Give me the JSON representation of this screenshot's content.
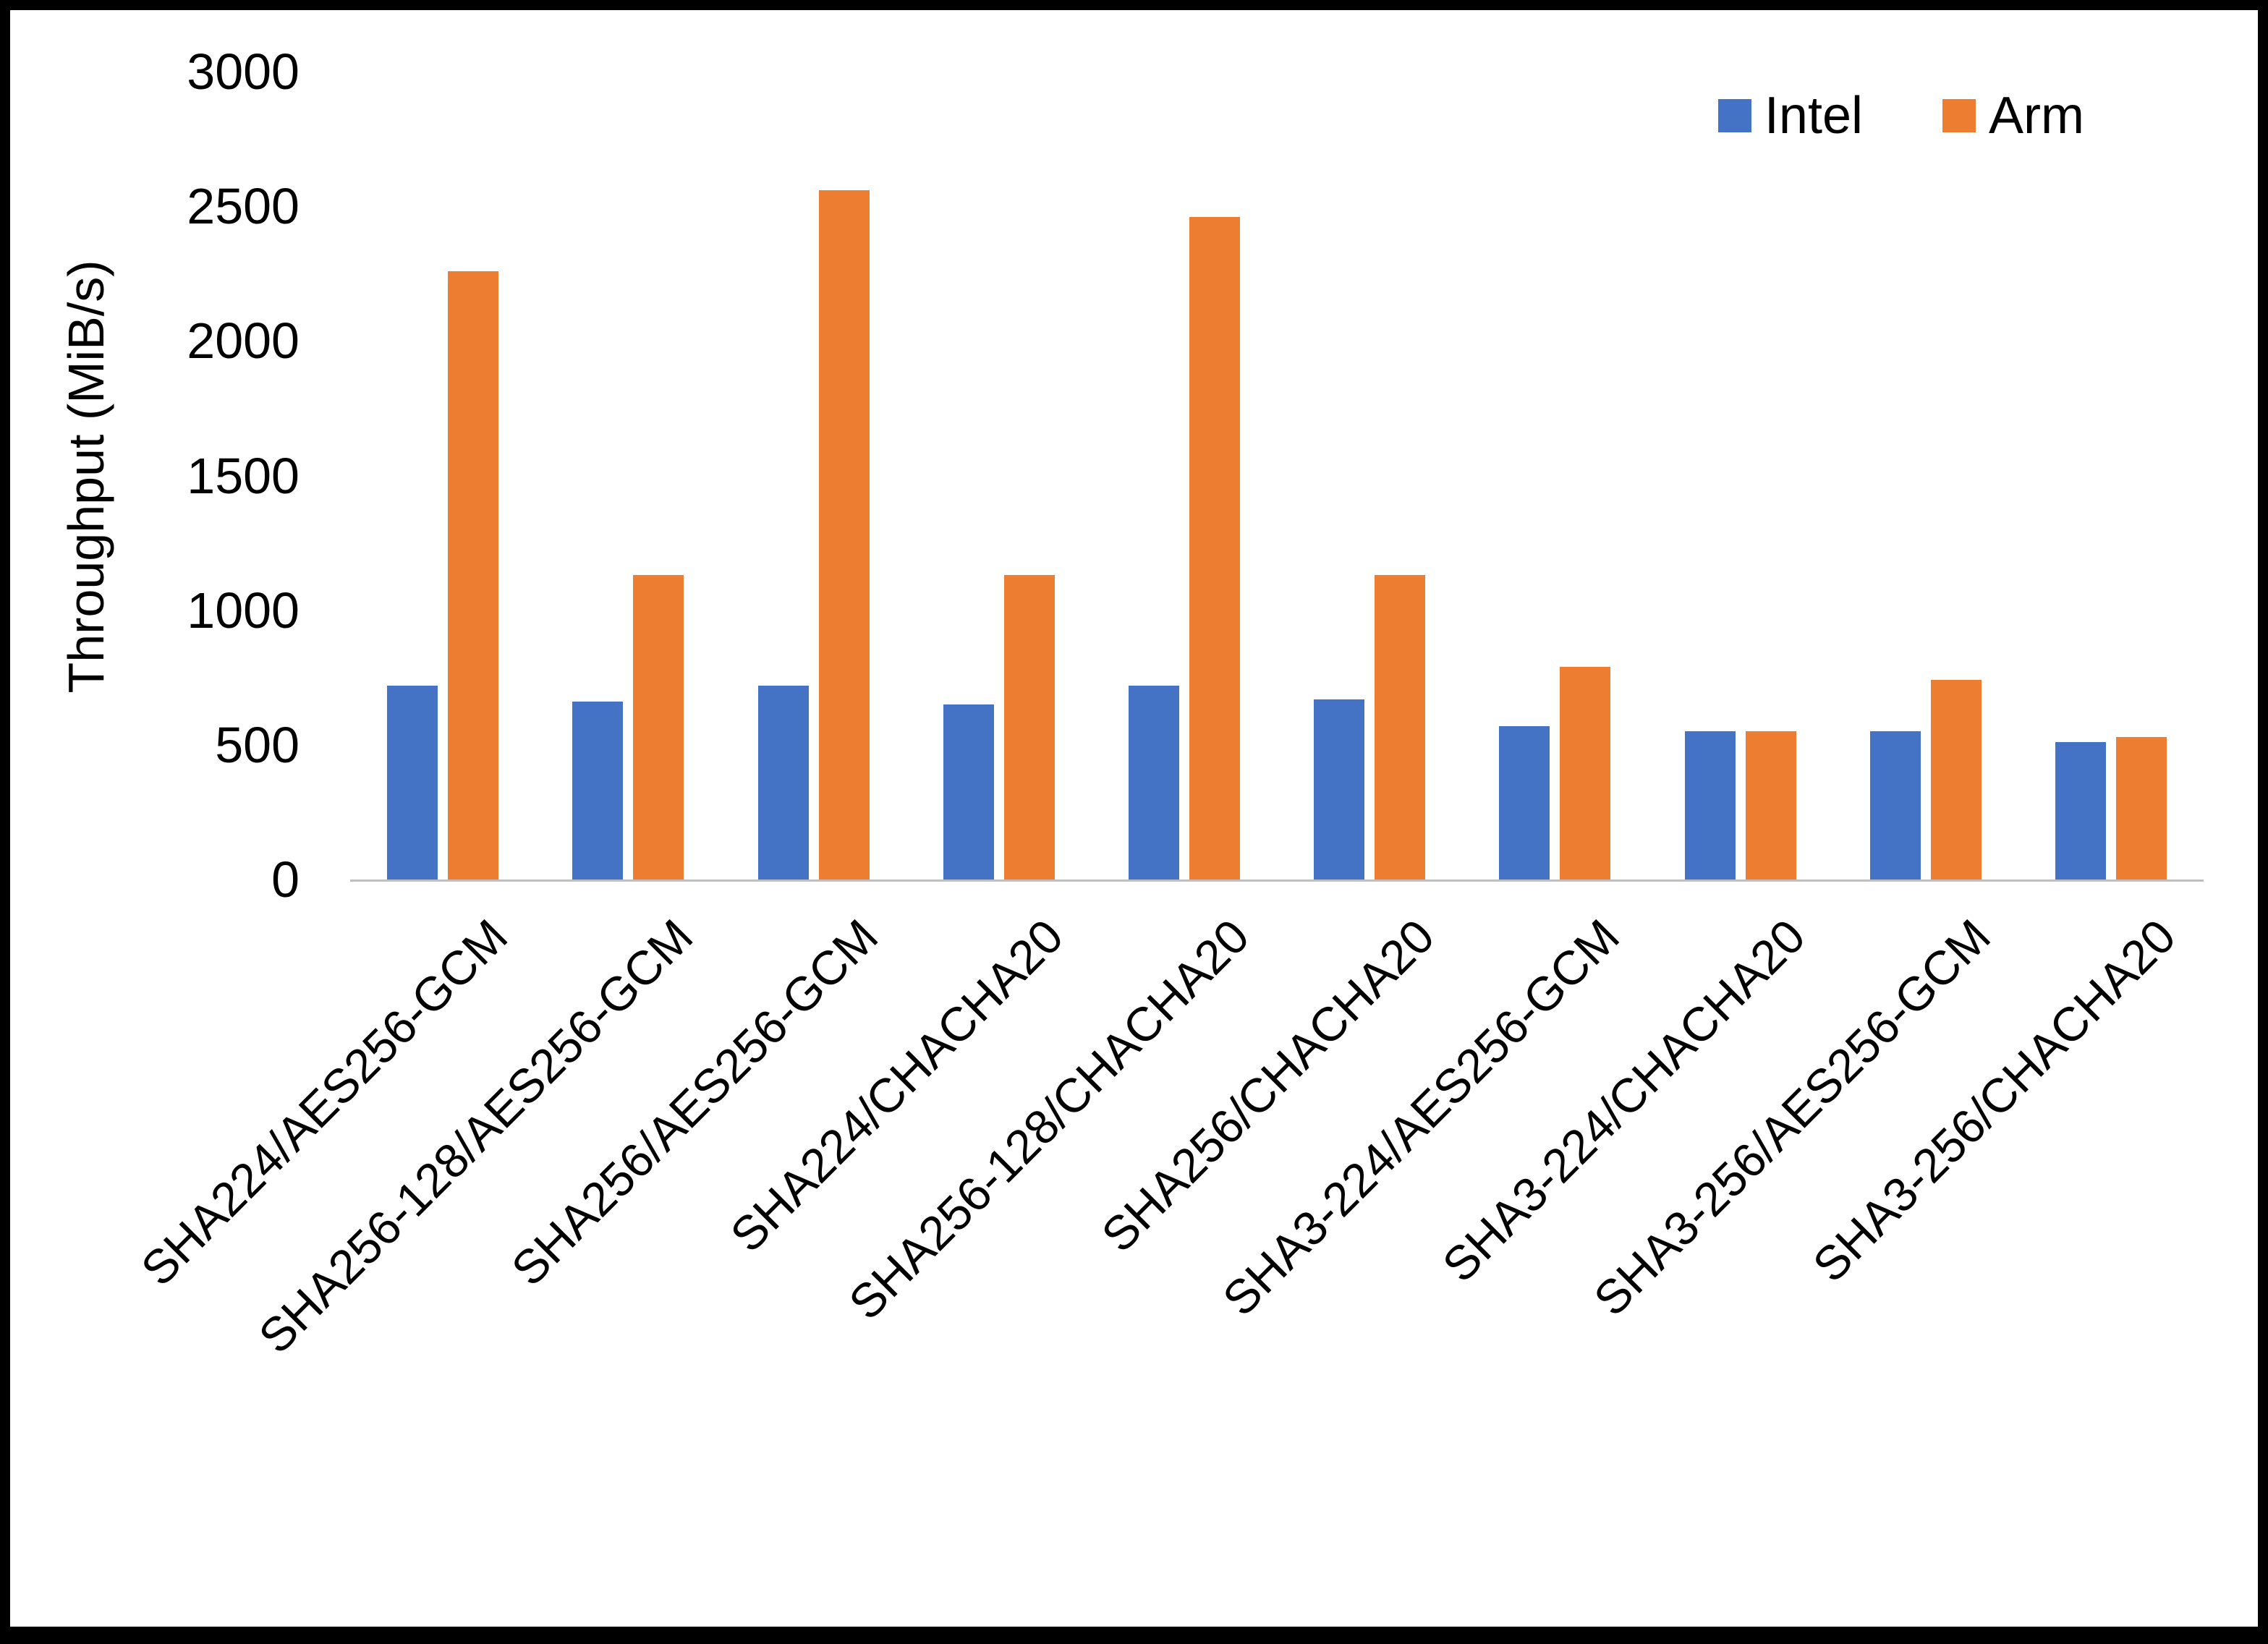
{
  "chart_data": {
    "type": "bar",
    "title": "",
    "xlabel": "",
    "ylabel": "Throughput (MiB/s)",
    "ylim": [
      0,
      3000
    ],
    "ytick_step": 500,
    "grid": false,
    "legend_position": "top-right",
    "categories": [
      "SHA224/AES256-GCM",
      "SHA256-128/AES256-GCM",
      "SHA256/AES256-GCM",
      "SHA224/CHACHA20",
      "SHA256-128/CHACHA20",
      "SHA256/CHACHA20",
      "SHA3-224/AES256-GCM",
      "SHA3-224/CHACHA20",
      "SHA3-256/AES256-GCM",
      "SHA3-256/CHACHA20"
    ],
    "series": [
      {
        "name": "Intel",
        "color": "#4472C4",
        "values": [
          720,
          660,
          720,
          650,
          720,
          670,
          570,
          550,
          550,
          510
        ]
      },
      {
        "name": "Arm",
        "color": "#ED7D31",
        "values": [
          2260,
          1130,
          2560,
          1130,
          2460,
          1130,
          790,
          550,
          740,
          530
        ]
      }
    ]
  }
}
